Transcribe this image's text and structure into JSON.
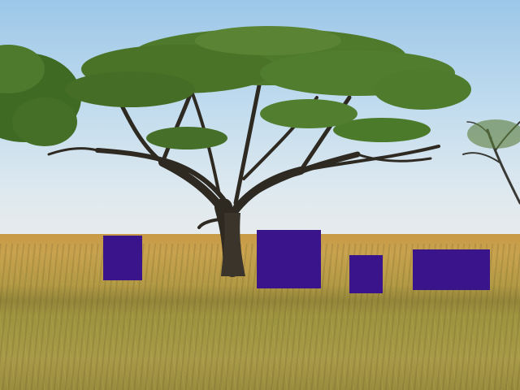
{
  "scene": {
    "description_colors": {
      "sky_top": "#9cc7e8",
      "grass": "#c8a24e",
      "canopy": "#4f7a2c",
      "occluder": "#3a148a"
    }
  },
  "occluders": [
    {
      "name": "occluder-patch-1"
    },
    {
      "name": "occluder-patch-2"
    },
    {
      "name": "occluder-patch-3"
    },
    {
      "name": "occluder-patch-4"
    }
  ]
}
